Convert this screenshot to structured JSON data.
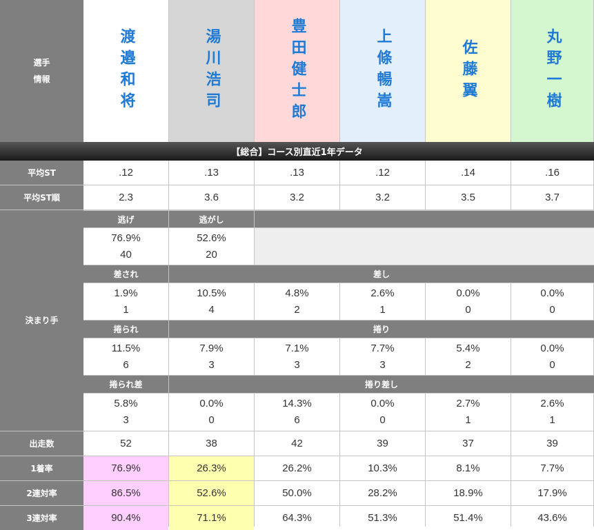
{
  "header_label": "選手\n情報",
  "section_title": "【総合】コース別直近1年データ",
  "racers": [
    {
      "name": "渡邉和将",
      "bg": "#ffffff"
    },
    {
      "name": "湯川浩司",
      "bg": "#d6d6d6"
    },
    {
      "name": "豊田健士郎",
      "bg": "#ffd9d9"
    },
    {
      "name": "上條暢嵩",
      "bg": "#e3f0fc"
    },
    {
      "name": "佐藤翼",
      "bg": "#fdfdd0"
    },
    {
      "name": "丸野一樹",
      "bg": "#d4f7cf"
    }
  ],
  "avg_st": {
    "label": "平均ST",
    "values": [
      ".12",
      ".13",
      ".13",
      ".12",
      ".14",
      ".16"
    ]
  },
  "avg_st_rank": {
    "label": "平均ST順",
    "values": [
      "2.3",
      "3.6",
      "3.2",
      "3.2",
      "3.5",
      "3.7"
    ]
  },
  "kimarite": {
    "label": "決まり手",
    "nige": {
      "label": "逃げ",
      "pct": "76.9%",
      "count": "40"
    },
    "nigashi": {
      "label": "逃がし",
      "pct": "52.6%",
      "count": "20"
    },
    "sasare": {
      "label": "差され",
      "pct": "1.9%",
      "count": "1"
    },
    "sashi": {
      "label": "差し",
      "pct": [
        "10.5%",
        "4.8%",
        "2.6%",
        "0.0%",
        "0.0%"
      ],
      "count": [
        "4",
        "2",
        "1",
        "0",
        "0"
      ]
    },
    "makurare": {
      "label": "捲られ",
      "pct": "11.5%",
      "count": "6"
    },
    "makuri": {
      "label": "捲り",
      "pct": [
        "7.9%",
        "7.1%",
        "7.7%",
        "5.4%",
        "0.0%"
      ],
      "count": [
        "3",
        "3",
        "3",
        "2",
        "0"
      ]
    },
    "makurare_sashi": {
      "label": "捲られ差",
      "pct": "5.8%",
      "count": "3"
    },
    "makuri_sashi": {
      "label": "捲り差し",
      "pct": [
        "0.0%",
        "14.3%",
        "0.0%",
        "2.7%",
        "2.6%"
      ],
      "count": [
        "0",
        "6",
        "0",
        "1",
        "1"
      ]
    }
  },
  "starts": {
    "label": "出走数",
    "values": [
      "52",
      "38",
      "42",
      "39",
      "37",
      "39"
    ]
  },
  "win_rate": {
    "label": "1着率",
    "values": [
      "76.9%",
      "26.3%",
      "26.2%",
      "10.3%",
      "8.1%",
      "7.7%"
    ]
  },
  "top2_rate": {
    "label": "2連対率",
    "values": [
      "86.5%",
      "52.6%",
      "50.0%",
      "28.2%",
      "18.9%",
      "17.9%"
    ]
  },
  "top3_rate": {
    "label": "3連対率",
    "values": [
      "90.4%",
      "71.1%",
      "64.3%",
      "51.3%",
      "51.4%",
      "43.6%"
    ]
  },
  "highlight": {
    "first": "#ffd0ff",
    "second": "#ffffb0"
  }
}
